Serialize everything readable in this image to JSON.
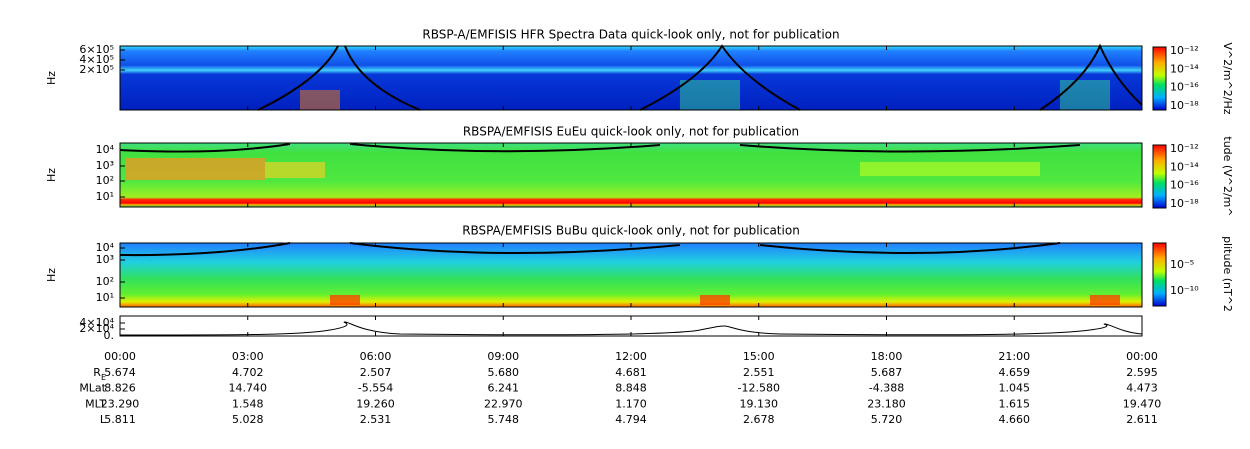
{
  "panels": [
    {
      "title": "RBSP-A/EMFISIS  HFR Spectra Data quick-look only, not for publication",
      "y_label": "Hz",
      "y_ticks": [
        "6×10⁵",
        "4×10⁵",
        "2×10⁵"
      ],
      "colorbar_label": "V^2/m^2/Hz",
      "colorbar_ticks": [
        "10⁻¹²",
        "10⁻¹⁴",
        "10⁻¹⁶",
        "10⁻¹⁸"
      ]
    },
    {
      "title": "RBSPA/EMFISIS  EuEu quick-look only, not for publication",
      "y_label": "Hz",
      "y_ticks": [
        "10⁴",
        "10³",
        "10²",
        "10¹"
      ],
      "colorbar_label": "tude (V^2/m^",
      "colorbar_ticks": [
        "10⁻¹²",
        "10⁻¹⁴",
        "10⁻¹⁶",
        "10⁻¹⁸"
      ]
    },
    {
      "title": "RBSPA/EMFISIS  BuBu quick-look only, not for publication",
      "y_label": "Hz",
      "y_ticks": [
        "10⁴",
        "10³",
        "10²",
        "10¹"
      ],
      "colorbar_label": "plitude (nT^2",
      "colorbar_ticks": [
        "10⁻⁵",
        "10⁻¹⁰"
      ]
    },
    {
      "y_ticks": [
        "4×10⁴",
        "2×10⁴",
        "0."
      ]
    }
  ],
  "x_ticks": [
    "00:00",
    "03:00",
    "06:00",
    "09:00",
    "12:00",
    "15:00",
    "18:00",
    "21:00",
    "00:00"
  ],
  "ephemeris": [
    {
      "label": "R",
      "sub": "E",
      "values": [
        "5.674",
        "4.702",
        "2.507",
        "5.680",
        "4.681",
        "2.551",
        "5.687",
        "4.659",
        "2.595"
      ]
    },
    {
      "label": "MLat",
      "values": [
        "8.826",
        "14.740",
        "-5.554",
        "6.241",
        "8.848",
        "-12.580",
        "-4.388",
        "1.045",
        "4.473"
      ]
    },
    {
      "label": "MLT",
      "values": [
        "23.290",
        "1.548",
        "19.260",
        "22.970",
        "1.170",
        "19.130",
        "23.180",
        "1.615",
        "19.470"
      ]
    },
    {
      "label": "L",
      "values": [
        "5.811",
        "5.028",
        "2.531",
        "5.748",
        "4.794",
        "2.678",
        "5.720",
        "4.660",
        "2.611"
      ]
    }
  ]
}
